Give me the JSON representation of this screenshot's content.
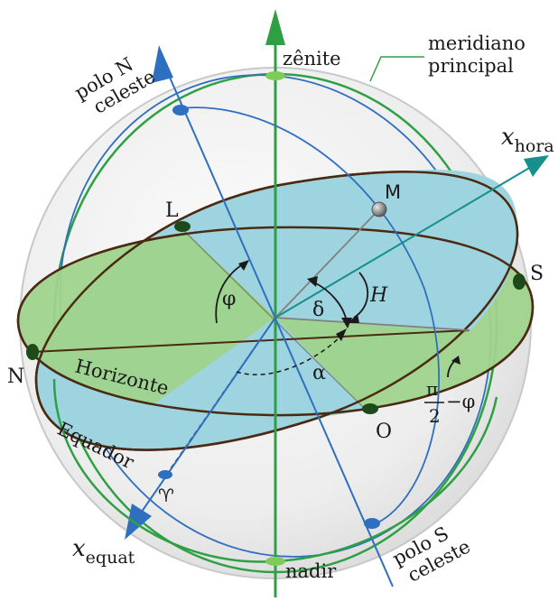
{
  "labels": {
    "zenite": "zênite",
    "nadir": "nadir",
    "meridiano_line1": "meridiano",
    "meridiano_line2": "principal",
    "polo_n_line1": "polo N",
    "polo_n_line2": "celeste",
    "polo_s_line1": "polo S",
    "polo_s_line2": "celeste",
    "x_hora_base": "x",
    "x_hora_sub": "hora",
    "x_equat_base": "x",
    "x_equat_sub": "equat",
    "north": "N",
    "south": "S",
    "east": "L",
    "west": "O",
    "star": "M",
    "horizonte": "Horizonte",
    "equador": "Equador",
    "aries": "♈",
    "phi": "φ",
    "delta": "δ",
    "hour_angle": "H",
    "alpha": "α",
    "pi": "π",
    "two": "2",
    "minus_phi": "−φ"
  },
  "colors": {
    "green_circle": "#2ea043",
    "blue_circle": "#2f6fc0",
    "horizon_fill": "#9fd38c",
    "equator_fill": "#9ed4e0",
    "sphere_fill": "#efefef",
    "sphere_edge": "#c8c8c8",
    "rim": "#4a2a12",
    "x_hora_axis": "#16908a",
    "dark": "#1a1a1a"
  }
}
